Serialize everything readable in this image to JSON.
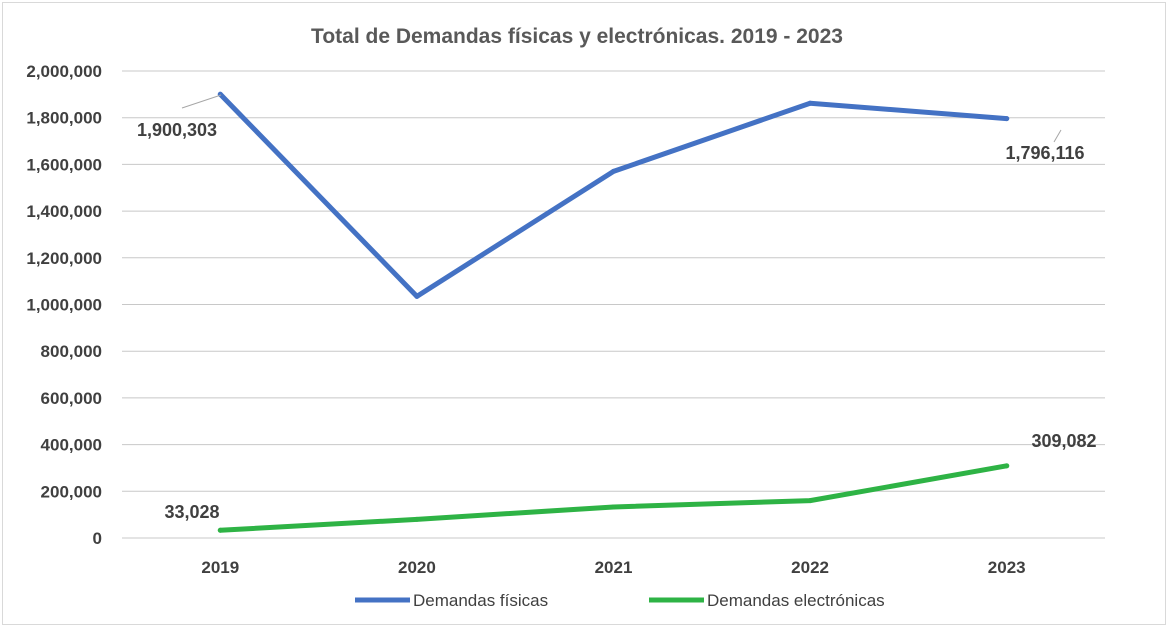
{
  "chart_data": {
    "type": "line",
    "title": "Total de Demandas físicas y electrónicas. 2019 - 2023",
    "categories": [
      "2019",
      "2020",
      "2021",
      "2022",
      "2023"
    ],
    "y_ticks": [
      "0",
      "200,000",
      "400,000",
      "600,000",
      "800,000",
      "1,000,000",
      "1,200,000",
      "1,400,000",
      "1,600,000",
      "1,800,000",
      "2,000,000"
    ],
    "ylim": [
      0,
      2000000
    ],
    "grid": true,
    "legend_position": "bottom",
    "series": [
      {
        "name": "Demandas físicas",
        "color": "#4472c4",
        "values": [
          1900303,
          1035000,
          1570000,
          1862000,
          1796116
        ],
        "labels": [
          "1,900,303",
          "",
          "",
          "",
          "1,796,116"
        ]
      },
      {
        "name": "Demandas electrónicas",
        "color": "#2eb345",
        "values": [
          33028,
          80000,
          133000,
          160000,
          309082
        ],
        "labels": [
          "33,028",
          "",
          "",
          "",
          "309,082"
        ]
      }
    ]
  }
}
